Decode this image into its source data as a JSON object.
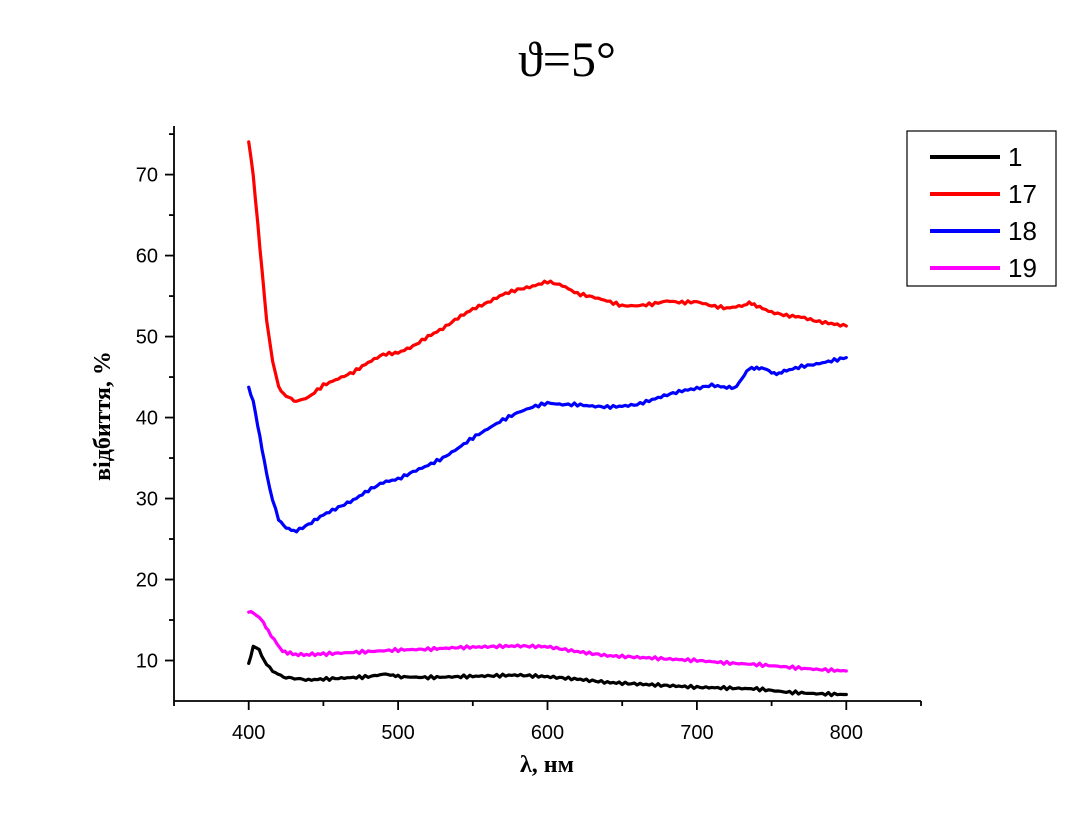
{
  "chart_data": {
    "type": "line",
    "title": "ϑ=5°",
    "xlabel": "λ, нм",
    "ylabel": "відбиття, %",
    "xlim": [
      350,
      850
    ],
    "ylim": [
      5,
      76
    ],
    "x_ticks": [
      400,
      500,
      600,
      700,
      800
    ],
    "y_ticks": [
      10,
      20,
      30,
      40,
      50,
      60,
      70
    ],
    "x_tick_labels": [
      "400",
      "500",
      "600",
      "700",
      "800"
    ],
    "y_tick_labels": [
      "10",
      "20",
      "30",
      "40",
      "50",
      "60",
      "70"
    ],
    "grid": false,
    "legend_position": "top-right",
    "series": [
      {
        "name": "1",
        "color": "#000000",
        "points": [
          [
            400,
            9.6
          ],
          [
            403,
            11.8
          ],
          [
            407,
            11.3
          ],
          [
            412,
            9.5
          ],
          [
            418,
            8.4
          ],
          [
            425,
            7.9
          ],
          [
            440,
            7.6
          ],
          [
            460,
            7.8
          ],
          [
            480,
            8.0
          ],
          [
            490,
            8.3
          ],
          [
            495,
            8.3
          ],
          [
            500,
            8.0
          ],
          [
            520,
            7.9
          ],
          [
            540,
            8.0
          ],
          [
            560,
            8.1
          ],
          [
            580,
            8.2
          ],
          [
            600,
            8.0
          ],
          [
            620,
            7.7
          ],
          [
            640,
            7.3
          ],
          [
            660,
            7.1
          ],
          [
            680,
            6.9
          ],
          [
            700,
            6.7
          ],
          [
            720,
            6.6
          ],
          [
            740,
            6.5
          ],
          [
            760,
            6.1
          ],
          [
            780,
            5.9
          ],
          [
            800,
            5.8
          ]
        ]
      },
      {
        "name": "17",
        "color": "#ff0000",
        "points": [
          [
            400,
            74.2
          ],
          [
            403,
            70
          ],
          [
            406,
            64
          ],
          [
            409,
            58
          ],
          [
            412,
            52
          ],
          [
            416,
            47
          ],
          [
            420,
            43.8
          ],
          [
            425,
            42.6
          ],
          [
            432,
            42.0
          ],
          [
            440,
            42.5
          ],
          [
            450,
            44
          ],
          [
            460,
            44.8
          ],
          [
            470,
            45.6
          ],
          [
            480,
            46.8
          ],
          [
            490,
            47.8
          ],
          [
            500,
            48.0
          ],
          [
            510,
            48.8
          ],
          [
            520,
            50
          ],
          [
            530,
            51
          ],
          [
            540,
            52.3
          ],
          [
            550,
            53.4
          ],
          [
            560,
            54.2
          ],
          [
            570,
            55.2
          ],
          [
            580,
            55.8
          ],
          [
            590,
            56.2
          ],
          [
            600,
            56.8
          ],
          [
            610,
            56.3
          ],
          [
            620,
            55.3
          ],
          [
            630,
            54.9
          ],
          [
            640,
            54.4
          ],
          [
            650,
            53.8
          ],
          [
            660,
            53.8
          ],
          [
            670,
            54.0
          ],
          [
            680,
            54.4
          ],
          [
            690,
            54.2
          ],
          [
            700,
            54.3
          ],
          [
            710,
            53.8
          ],
          [
            720,
            53.5
          ],
          [
            730,
            53.8
          ],
          [
            735,
            54.1
          ],
          [
            740,
            53.8
          ],
          [
            750,
            53.0
          ],
          [
            760,
            52.6
          ],
          [
            770,
            52.4
          ],
          [
            780,
            51.9
          ],
          [
            790,
            51.6
          ],
          [
            800,
            51.3
          ]
        ]
      },
      {
        "name": "18",
        "color": "#0000ff",
        "points": [
          [
            400,
            43.6
          ],
          [
            403,
            42
          ],
          [
            406,
            39
          ],
          [
            409,
            36
          ],
          [
            412,
            33
          ],
          [
            416,
            29.8
          ],
          [
            420,
            27.5
          ],
          [
            425,
            26.3
          ],
          [
            432,
            26.0
          ],
          [
            440,
            26.8
          ],
          [
            450,
            28
          ],
          [
            460,
            28.9
          ],
          [
            470,
            29.8
          ],
          [
            480,
            31.0
          ],
          [
            490,
            32.0
          ],
          [
            500,
            32.4
          ],
          [
            510,
            33.3
          ],
          [
            520,
            34.1
          ],
          [
            530,
            35.0
          ],
          [
            540,
            36.2
          ],
          [
            550,
            37.5
          ],
          [
            560,
            38.6
          ],
          [
            570,
            39.7
          ],
          [
            580,
            40.6
          ],
          [
            590,
            41.3
          ],
          [
            600,
            41.8
          ],
          [
            610,
            41.6
          ],
          [
            620,
            41.6
          ],
          [
            630,
            41.4
          ],
          [
            640,
            41.3
          ],
          [
            650,
            41.4
          ],
          [
            660,
            41.6
          ],
          [
            670,
            42.2
          ],
          [
            680,
            42.8
          ],
          [
            690,
            43.3
          ],
          [
            700,
            43.6
          ],
          [
            710,
            44.0
          ],
          [
            720,
            43.7
          ],
          [
            725,
            43.6
          ],
          [
            730,
            44.8
          ],
          [
            735,
            46.0
          ],
          [
            740,
            46.2
          ],
          [
            745,
            46.0
          ],
          [
            750,
            45.6
          ],
          [
            755,
            45.4
          ],
          [
            760,
            45.8
          ],
          [
            770,
            46.3
          ],
          [
            780,
            46.6
          ],
          [
            790,
            47.0
          ],
          [
            800,
            47.4
          ]
        ]
      },
      {
        "name": "19",
        "color": "#ff00ff",
        "points": [
          [
            400,
            16.0
          ],
          [
            403,
            15.8
          ],
          [
            407,
            15.4
          ],
          [
            410,
            14.6
          ],
          [
            413,
            13.6
          ],
          [
            417,
            12.6
          ],
          [
            421,
            11.5
          ],
          [
            426,
            10.9
          ],
          [
            435,
            10.7
          ],
          [
            450,
            10.8
          ],
          [
            470,
            11.0
          ],
          [
            490,
            11.2
          ],
          [
            500,
            11.3
          ],
          [
            520,
            11.4
          ],
          [
            540,
            11.6
          ],
          [
            560,
            11.7
          ],
          [
            580,
            11.8
          ],
          [
            600,
            11.7
          ],
          [
            620,
            11.1
          ],
          [
            640,
            10.6
          ],
          [
            660,
            10.4
          ],
          [
            680,
            10.2
          ],
          [
            700,
            10.0
          ],
          [
            720,
            9.7
          ],
          [
            740,
            9.5
          ],
          [
            760,
            9.2
          ],
          [
            780,
            8.9
          ],
          [
            800,
            8.7
          ]
        ]
      }
    ]
  }
}
